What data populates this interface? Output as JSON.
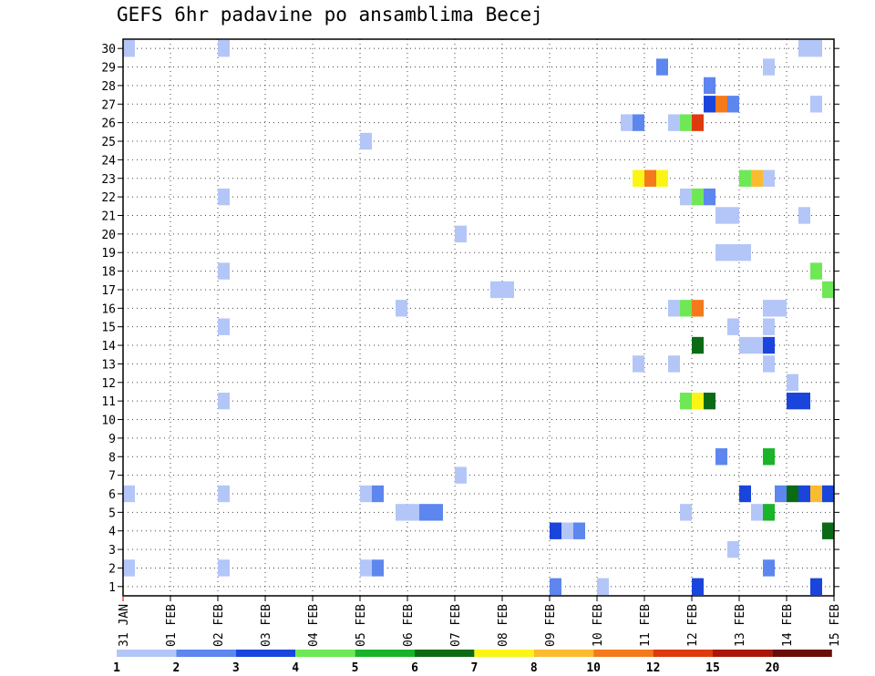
{
  "chart_data": {
    "type": "heatmap",
    "title": "GEFS 6hr padavine po ansamblima Becej",
    "xlabel": "",
    "ylabel": "",
    "x_tick_labels": [
      "31 JAN",
      "01 FEB",
      "02 FEB",
      "03 FEB",
      "04 FEB",
      "05 FEB",
      "06 FEB",
      "07 FEB",
      "08 FEB",
      "09 FEB",
      "10 FEB",
      "11 FEB",
      "12 FEB",
      "13 FEB",
      "14 FEB",
      "15 FEB"
    ],
    "y_tick_labels": [
      "1",
      "2",
      "3",
      "4",
      "5",
      "6",
      "7",
      "8",
      "9",
      "10",
      "11",
      "12",
      "13",
      "14",
      "15",
      "16",
      "17",
      "18",
      "19",
      "20",
      "21",
      "22",
      "23",
      "24",
      "25",
      "26",
      "27",
      "28",
      "29",
      "30"
    ],
    "ylim": [
      1,
      30
    ],
    "grid": true,
    "legend_placement": "bottom",
    "legend_bins": [
      {
        "label": "1",
        "color": "#b3c6f7"
      },
      {
        "label": "2",
        "color": "#5d86ee"
      },
      {
        "label": "3",
        "color": "#1a45dc"
      },
      {
        "label": "4",
        "color": "#6ee855"
      },
      {
        "label": "5",
        "color": "#19b42a"
      },
      {
        "label": "6",
        "color": "#0a6b14"
      },
      {
        "label": "7",
        "color": "#fbf515"
      },
      {
        "label": "8",
        "color": "#fbbb30"
      },
      {
        "label": "10",
        "color": "#f47a1c"
      },
      {
        "label": "12",
        "color": "#dd3a0e"
      },
      {
        "label": "15",
        "color": "#aa1608"
      },
      {
        "label": "20",
        "color": "#6a0c06"
      }
    ],
    "cells": [
      [
        "31 JAN 00z",
        30,
        1
      ],
      [
        "31 JAN 00z",
        6,
        1
      ],
      [
        "31 JAN 00z",
        2,
        1
      ],
      [
        "02 FEB 00z",
        30,
        1
      ],
      [
        "02 FEB 00z",
        22,
        1
      ],
      [
        "02 FEB 00z",
        18,
        1
      ],
      [
        "02 FEB 00z",
        15,
        1
      ],
      [
        "02 FEB 00z",
        11,
        1
      ],
      [
        "02 FEB 00z",
        6,
        1
      ],
      [
        "02 FEB 00z",
        2,
        1
      ],
      [
        "05 FEB 00z",
        25,
        1
      ],
      [
        "05 FEB 00z",
        6,
        1
      ],
      [
        "05 FEB 06z",
        6,
        2
      ],
      [
        "05 FEB 00z",
        2,
        1
      ],
      [
        "05 FEB 06z",
        2,
        2
      ],
      [
        "05 FEB 18z",
        16,
        1
      ],
      [
        "05 FEB 18z",
        5,
        1
      ],
      [
        "06 FEB 00z",
        5,
        1
      ],
      [
        "06 FEB 06z",
        5,
        2
      ],
      [
        "06 FEB 12z",
        5,
        2
      ],
      [
        "07 FEB 00z",
        20,
        1
      ],
      [
        "07 FEB 00z",
        7,
        1
      ],
      [
        "07 FEB 18z",
        17,
        1
      ],
      [
        "08 FEB 00z",
        17,
        1
      ],
      [
        "09 FEB 00z",
        4,
        3
      ],
      [
        "09 FEB 06z",
        4,
        1
      ],
      [
        "09 FEB 12z",
        4,
        2
      ],
      [
        "09 FEB 00z",
        1,
        2
      ],
      [
        "10 FEB 00z",
        1,
        1
      ],
      [
        "10 FEB 12z",
        26,
        1
      ],
      [
        "10 FEB 18z",
        26,
        2
      ],
      [
        "10 FEB 18z",
        13,
        1
      ],
      [
        "10 FEB 18z",
        23,
        7
      ],
      [
        "11 FEB 00z",
        23,
        10
      ],
      [
        "11 FEB 06z",
        23,
        7
      ],
      [
        "11 FEB 06z",
        29,
        2
      ],
      [
        "11 FEB 12z",
        26,
        1
      ],
      [
        "11 FEB 18z",
        26,
        4
      ],
      [
        "12 FEB 00z",
        26,
        12
      ],
      [
        "11 FEB 18z",
        22,
        1
      ],
      [
        "12 FEB 00z",
        22,
        4
      ],
      [
        "12 FEB 06z",
        22,
        2
      ],
      [
        "11 FEB 12z",
        16,
        1
      ],
      [
        "11 FEB 18z",
        16,
        4
      ],
      [
        "12 FEB 00z",
        16,
        10
      ],
      [
        "11 FEB 12z",
        13,
        1
      ],
      [
        "11 FEB 18z",
        11,
        4
      ],
      [
        "12 FEB 00z",
        11,
        7
      ],
      [
        "12 FEB 06z",
        11,
        6
      ],
      [
        "11 FEB 18z",
        5,
        1
      ],
      [
        "12 FEB 00z",
        14,
        6
      ],
      [
        "12 FEB 00z",
        1,
        3
      ],
      [
        "12 FEB 06z",
        28,
        2
      ],
      [
        "12 FEB 06z",
        27,
        3
      ],
      [
        "12 FEB 12z",
        27,
        10
      ],
      [
        "12 FEB 18z",
        27,
        2
      ],
      [
        "12 FEB 12z",
        21,
        1
      ],
      [
        "12 FEB 18z",
        21,
        1
      ],
      [
        "12 FEB 12z",
        19,
        1
      ],
      [
        "12 FEB 18z",
        19,
        1
      ],
      [
        "13 FEB 00z",
        19,
        1
      ],
      [
        "12 FEB 12z",
        8,
        2
      ],
      [
        "12 FEB 18z",
        15,
        1
      ],
      [
        "12 FEB 18z",
        3,
        1
      ],
      [
        "13 FEB 00z",
        23,
        4
      ],
      [
        "13 FEB 06z",
        23,
        8
      ],
      [
        "13 FEB 12z",
        23,
        1
      ],
      [
        "13 FEB 00z",
        14,
        1
      ],
      [
        "13 FEB 06z",
        14,
        1
      ],
      [
        "13 FEB 00z",
        6,
        3
      ],
      [
        "13 FEB 06z",
        5,
        1
      ],
      [
        "13 FEB 12z",
        29,
        1
      ],
      [
        "13 FEB 12z",
        16,
        1
      ],
      [
        "13 FEB 18z",
        16,
        1
      ],
      [
        "13 FEB 12z",
        15,
        1
      ],
      [
        "13 FEB 12z",
        14,
        3
      ],
      [
        "13 FEB 12z",
        13,
        1
      ],
      [
        "13 FEB 12z",
        8,
        5
      ],
      [
        "13 FEB 12z",
        5,
        5
      ],
      [
        "13 FEB 12z",
        2,
        2
      ],
      [
        "13 FEB 18z",
        6,
        2
      ],
      [
        "14 FEB 00z",
        12,
        1
      ],
      [
        "14 FEB 00z",
        11,
        3
      ],
      [
        "14 FEB 06z",
        11,
        3
      ],
      [
        "14 FEB 00z",
        6,
        6
      ],
      [
        "14 FEB 06z",
        6,
        3
      ],
      [
        "14 FEB 12z",
        6,
        8
      ],
      [
        "14 FEB 18z",
        6,
        3
      ],
      [
        "14 FEB 06z",
        30,
        1
      ],
      [
        "14 FEB 12z",
        30,
        1
      ],
      [
        "14 FEB 06z",
        21,
        1
      ],
      [
        "14 FEB 12z",
        27,
        1
      ],
      [
        "14 FEB 12z",
        18,
        4
      ],
      [
        "14 FEB 12z",
        1,
        3
      ],
      [
        "14 FEB 18z",
        17,
        4
      ],
      [
        "14 FEB 18z",
        4,
        6
      ]
    ]
  }
}
